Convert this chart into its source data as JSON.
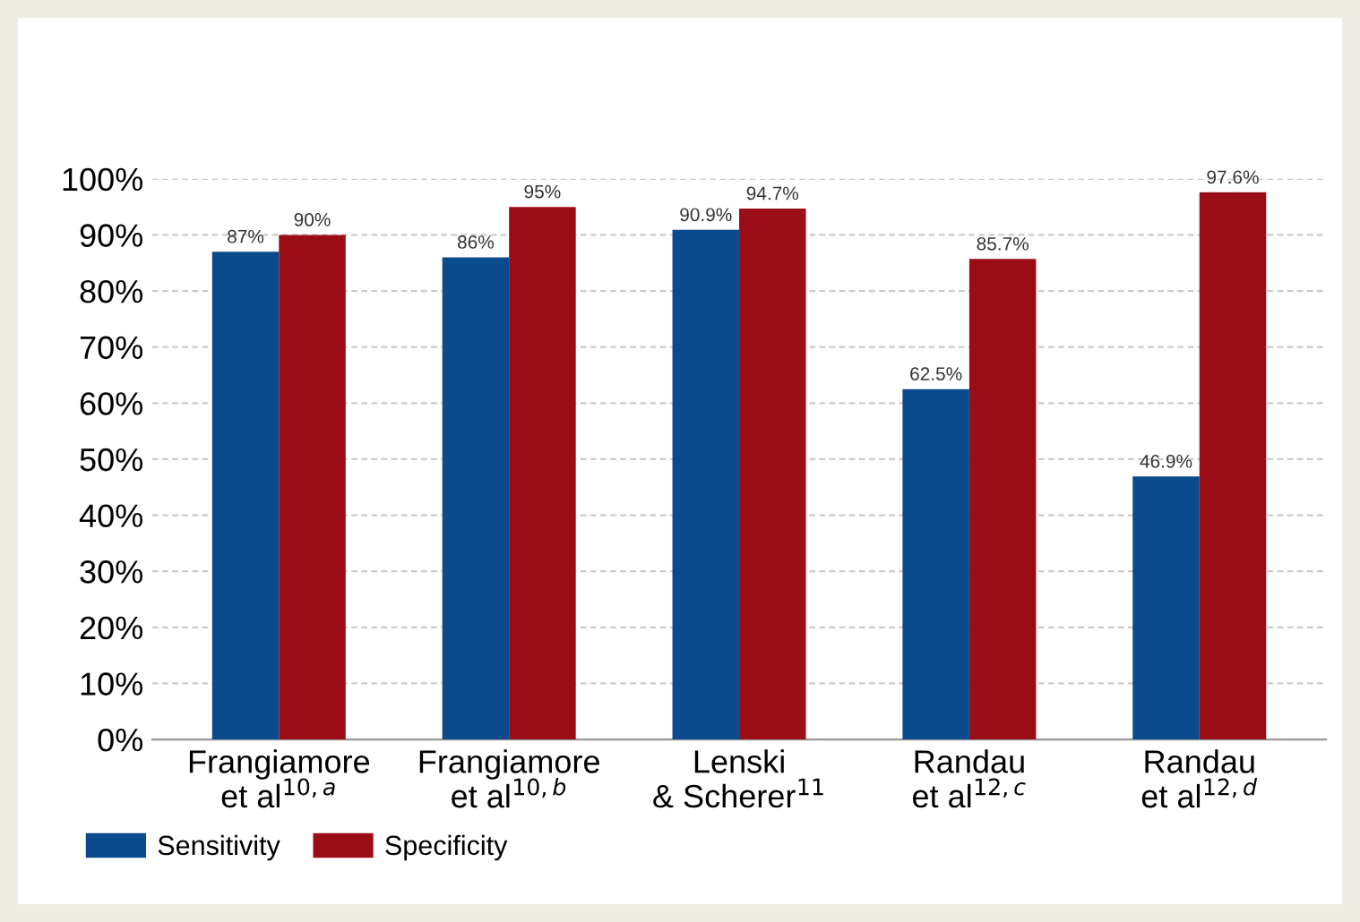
{
  "chart_data": {
    "type": "bar",
    "categories": [
      "Frangiamore\net al$^{10,a}$",
      "Frangiamore\net al$^{10,b}$",
      "Lenski\n& Scherer$^{11}$",
      "Randau\net al$^{12,c}$",
      "Randau\net al$^{12,d}$"
    ],
    "series": [
      {
        "name": "Sensitivity",
        "color": "#0b4a8c",
        "values": [
          87,
          86,
          90.9,
          62.5,
          46.9
        ],
        "value_labels": [
          "87%",
          "86%",
          "90.9%",
          "62.5%",
          "46.9%"
        ]
      },
      {
        "name": "Specificity",
        "color": "#9b0d16",
        "values": [
          90,
          95,
          94.7,
          85.7,
          97.6
        ],
        "value_labels": [
          "90%",
          "95%",
          "94.7%",
          "85.7%",
          "97.6%"
        ]
      }
    ],
    "ylim": [
      0,
      100
    ],
    "yticks": [
      {
        "value": 0,
        "label": "0%"
      },
      {
        "value": 10,
        "label": "10%"
      },
      {
        "value": 20,
        "label": "20%"
      },
      {
        "value": 30,
        "label": "30%"
      },
      {
        "value": 40,
        "label": "40%"
      },
      {
        "value": 50,
        "label": "50%"
      },
      {
        "value": 60,
        "label": "60%"
      },
      {
        "value": 70,
        "label": "70%"
      },
      {
        "value": 80,
        "label": "80%"
      },
      {
        "value": 90,
        "label": "90%"
      },
      {
        "value": 100,
        "label": "100%"
      }
    ],
    "grid": "y",
    "legend": "bottom left"
  }
}
